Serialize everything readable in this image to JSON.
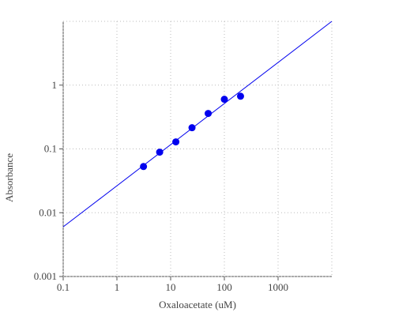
{
  "chart_data": {
    "type": "scatter",
    "x_label": "Oxaloacetate (uM)",
    "y_label": "Absorbance",
    "log_x": true,
    "log_y": true,
    "grid": true,
    "xlim": [
      0.1,
      10000
    ],
    "ylim": [
      0.001,
      10
    ],
    "xticks": [
      0.1,
      1,
      10,
      100,
      1000
    ],
    "yticks": [
      0.001,
      0.01,
      0.1,
      1
    ],
    "series": [
      {
        "color": "#0000ee",
        "x": [
          3.125,
          6.25,
          12.5,
          25,
          50,
          100,
          200
        ],
        "values": [
          0.053,
          0.089,
          0.129,
          0.215,
          0.36,
          0.6,
          0.67
        ]
      }
    ],
    "fit": {
      "color": "#0000ee",
      "x": [
        0.1,
        10000
      ],
      "values": [
        0.006,
        10
      ]
    }
  }
}
